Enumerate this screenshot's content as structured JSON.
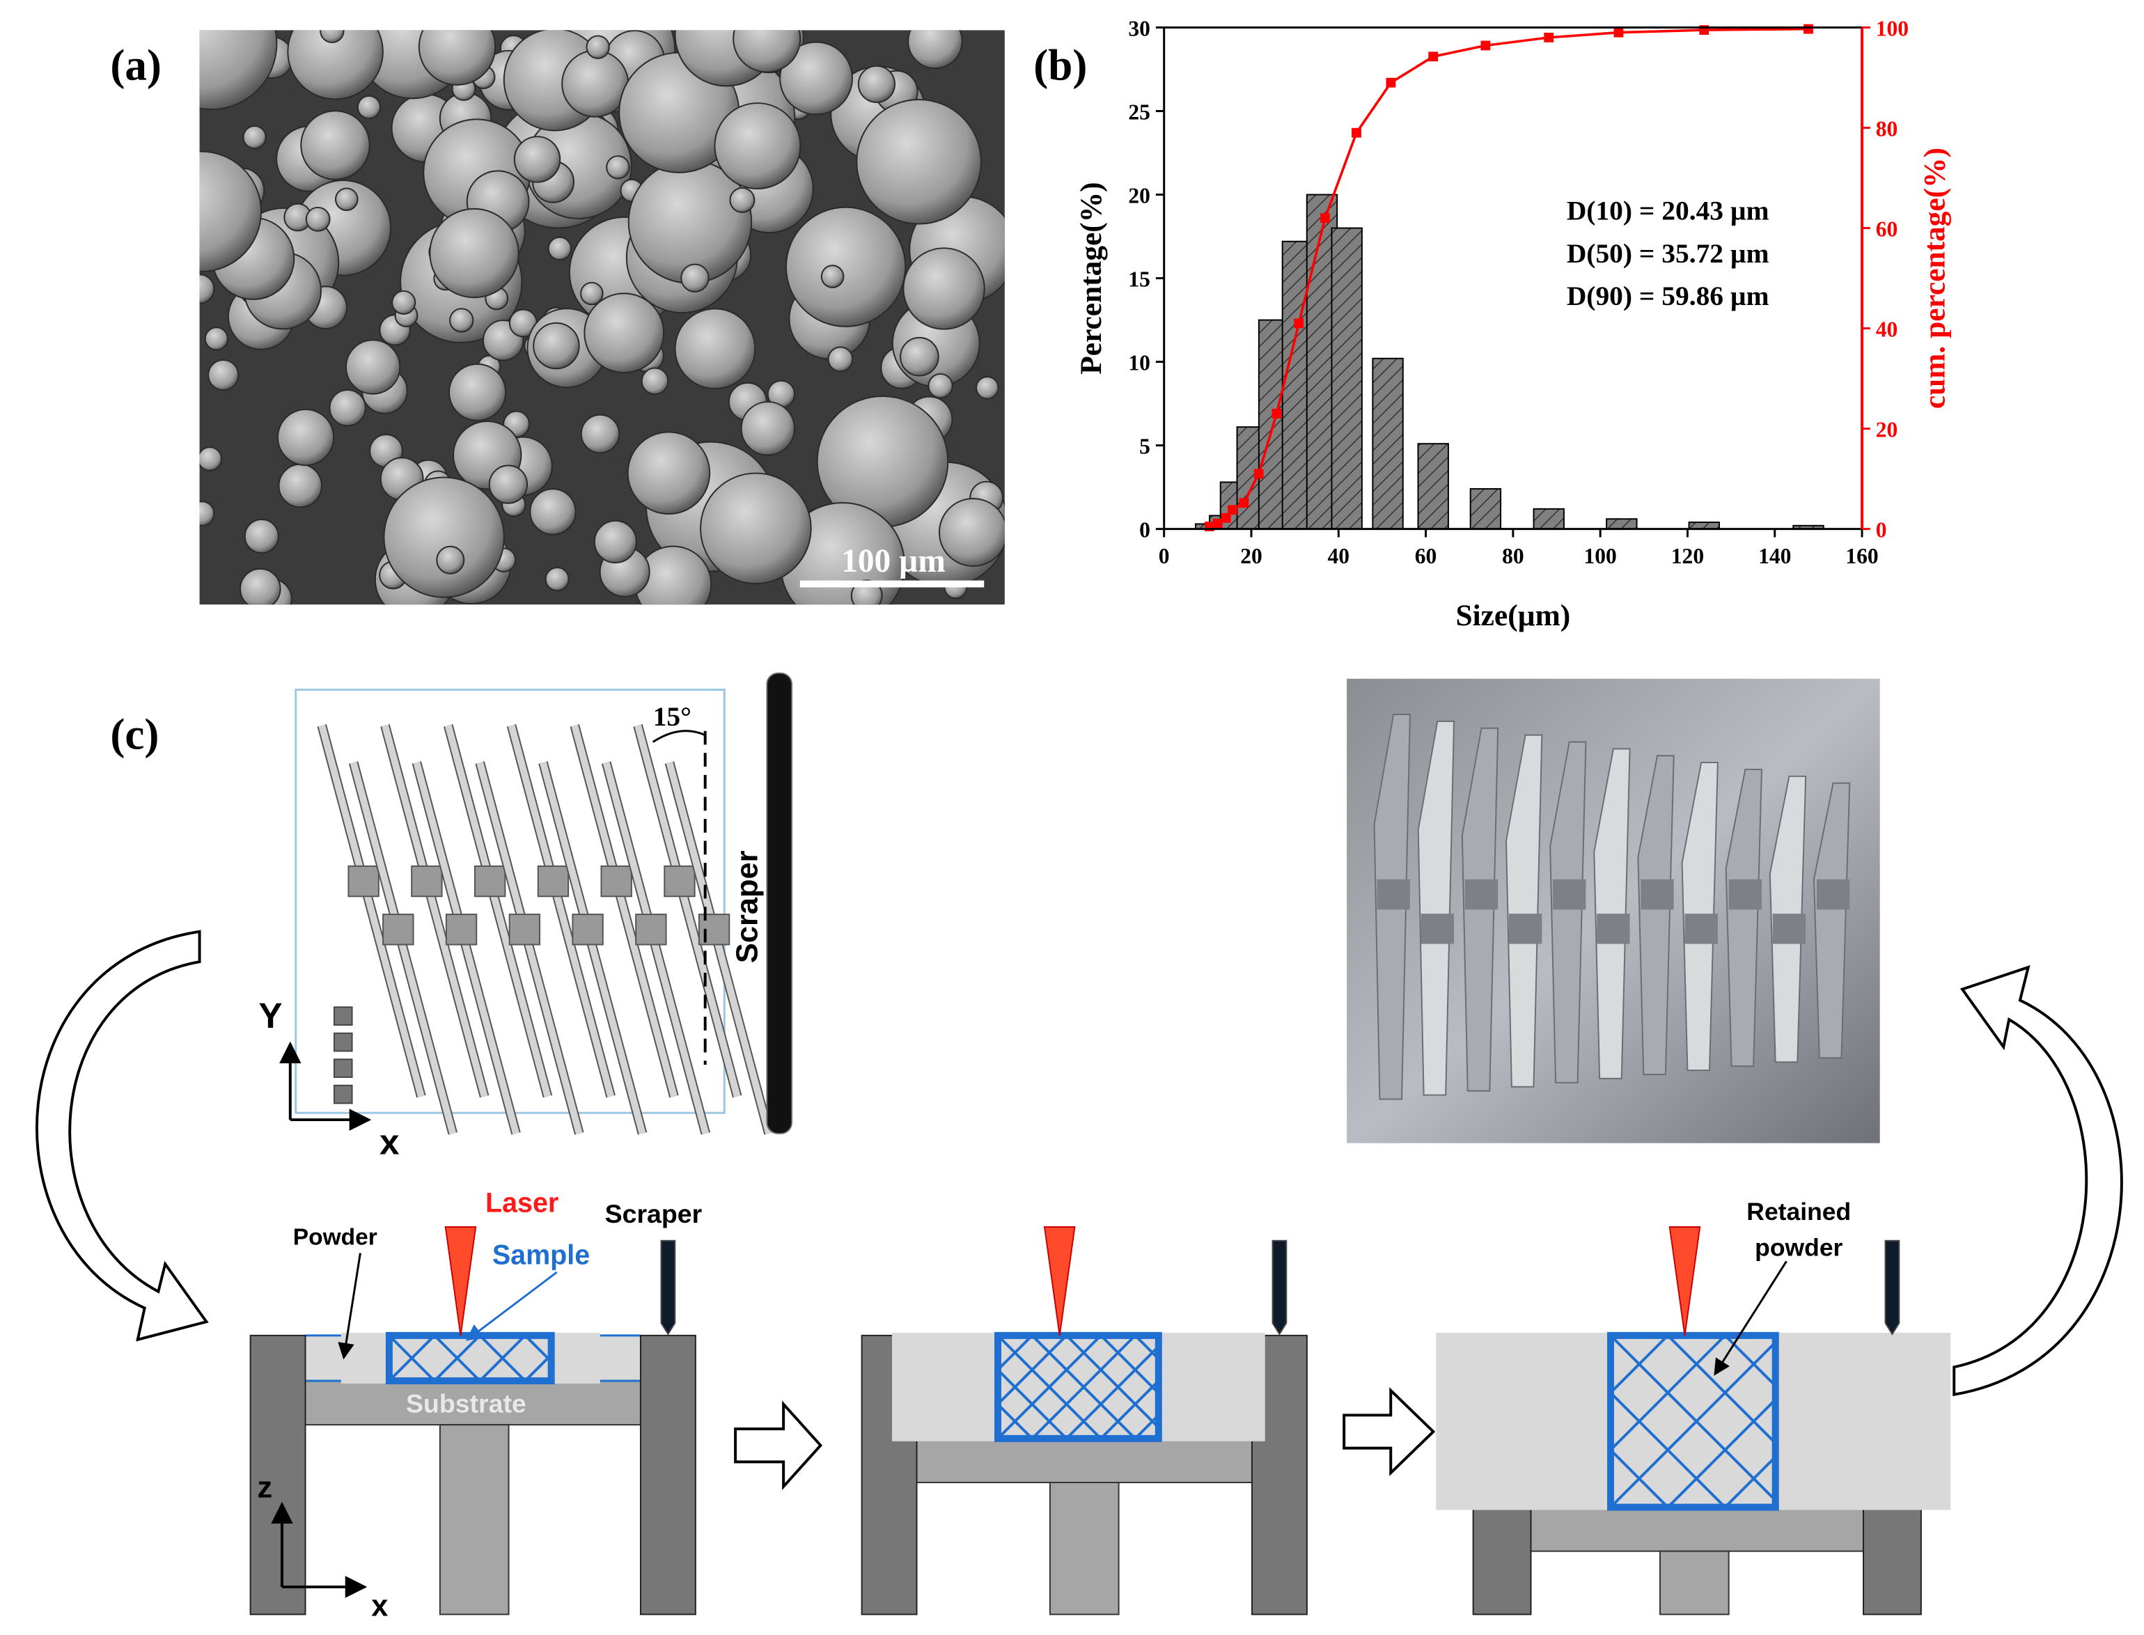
{
  "panel_a": {
    "label": "(a)",
    "scale_bar": "100 µm"
  },
  "chart_data": {
    "type": "bar",
    "panel_label": "(b)",
    "xlabel": "Size(µm)",
    "ylabel": "Percentage(%)",
    "y2label": "cum. percentage(%)",
    "annotations": [
      "D(10) = 20.43 µm",
      "D(50) = 35.72 µm",
      "D(90) = 59.86 µm"
    ],
    "x": [
      10.7,
      13.9,
      16.4,
      20.2,
      25.2,
      30.6,
      36.2,
      41.9,
      51.3,
      61.7,
      73.7,
      88.2,
      104.9,
      123.8,
      147.7
    ],
    "values": [
      0.3,
      0.8,
      2.8,
      6.1,
      12.5,
      17.2,
      20,
      18,
      10.2,
      5.1,
      2.4,
      1.2,
      0.6,
      0.4,
      0.2
    ],
    "color": "#7f7f7f",
    "line": {
      "type": "line",
      "axis": "y2",
      "color": "#ff0000",
      "x": [
        10.4,
        12.3,
        14.2,
        15.7,
        18.3,
        21.7,
        25.8,
        30.9,
        36.9,
        44.1,
        52,
        61.7,
        73.7,
        88.2,
        104.2,
        123.8,
        147.7
      ],
      "values": [
        0.5,
        1.1,
        2.2,
        3.8,
        5.2,
        11,
        23,
        41,
        62,
        79,
        89,
        94.2,
        96.4,
        98,
        99,
        99.5,
        99.7
      ]
    },
    "xlim": [
      0,
      160
    ],
    "xticks": [
      0,
      20,
      40,
      60,
      80,
      100,
      120,
      140,
      160
    ],
    "ylim": [
      0,
      30
    ],
    "yticks": [
      0,
      5,
      10,
      15,
      20,
      25,
      30
    ],
    "y2lim": [
      0,
      100
    ],
    "y2ticks": [
      0,
      20,
      40,
      60,
      80,
      100
    ]
  },
  "panel_c": {
    "label": "(c)",
    "layout": {
      "angle": "15°",
      "scraper": "Scraper",
      "y_axis": "Y",
      "x_axis": "x"
    },
    "process": {
      "laser": "Laser",
      "powder": "Powder",
      "sample": "Sample",
      "scraper": "Scraper",
      "substrate": "Substrate",
      "z_axis": "z",
      "x_axis": "x",
      "retained_powder": [
        "Retained",
        "powder"
      ]
    }
  }
}
